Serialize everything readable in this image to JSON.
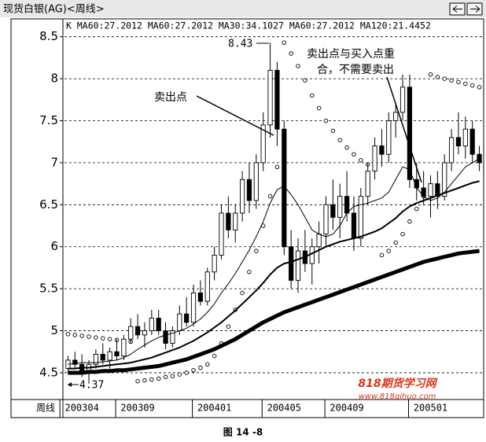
{
  "chart_data": {
    "type": "candlestick",
    "title": "现货白银(AG)<周线>",
    "legend": "K MA60:27.2012 MA60:27.2012 MA30:34.1027 MA60:27.2012 MA120:21.4452",
    "x_label": "周线",
    "caption": "图 14 -8",
    "annotations": [
      "8.43",
      "4.37",
      "卖出点",
      "卖出点与买入点重",
      "合，不需要卖出"
    ],
    "watermark": [
      "818期货学习网",
      "www.818qihuo.com"
    ],
    "categories": [
      null,
      null,
      "200304",
      null,
      null,
      null,
      null,
      null,
      null,
      null,
      "200309",
      null,
      null,
      null,
      null,
      null,
      null,
      null,
      null,
      null,
      null,
      "200401",
      null,
      null,
      null,
      null,
      null,
      null,
      null,
      null,
      null,
      "200405",
      null,
      null,
      null,
      null,
      null,
      null,
      null,
      null,
      "200409",
      null,
      null,
      null,
      null,
      null,
      null,
      null,
      null,
      null,
      null,
      null,
      "200501",
      null,
      null,
      null,
      null,
      null,
      null,
      null
    ],
    "open": [
      4.55,
      4.65,
      4.6,
      4.5,
      4.6,
      4.72,
      4.65,
      4.75,
      4.7,
      4.9,
      5.05,
      4.95,
      5.0,
      5.15,
      5.0,
      4.85,
      5.0,
      5.2,
      5.1,
      5.45,
      5.35,
      5.7,
      5.9,
      6.4,
      6.2,
      6.4,
      6.8,
      6.55,
      7.0,
      7.45,
      8.1,
      7.4,
      6.0,
      5.6,
      5.95,
      5.8,
      6.0,
      6.15,
      6.5,
      6.35,
      6.6,
      6.4,
      6.1,
      6.6,
      6.9,
      7.2,
      7.1,
      7.5,
      7.6,
      7.9,
      6.8,
      6.7,
      6.6,
      6.75,
      6.6,
      7.0,
      7.3,
      7.2,
      7.4,
      7.1
    ],
    "high": [
      4.7,
      4.75,
      4.72,
      4.65,
      4.78,
      4.85,
      4.8,
      4.9,
      4.95,
      5.15,
      5.2,
      5.1,
      5.25,
      5.25,
      5.1,
      5.05,
      5.3,
      5.4,
      5.55,
      5.6,
      5.75,
      6.0,
      6.5,
      6.6,
      6.5,
      6.9,
      7.0,
      7.1,
      7.6,
      8.43,
      8.2,
      7.5,
      6.2,
      6.1,
      6.2,
      6.1,
      6.3,
      6.6,
      6.8,
      6.75,
      6.9,
      6.6,
      6.7,
      7.0,
      7.3,
      7.4,
      7.6,
      7.7,
      8.05,
      8.05,
      7.0,
      6.9,
      6.85,
      6.9,
      7.1,
      7.4,
      7.6,
      7.55,
      7.5,
      7.2
    ],
    "low": [
      4.5,
      4.55,
      4.45,
      4.37,
      4.55,
      4.6,
      4.55,
      4.65,
      4.65,
      4.85,
      4.9,
      4.8,
      4.95,
      4.95,
      4.78,
      4.8,
      4.95,
      5.05,
      5.05,
      5.3,
      5.3,
      5.6,
      5.85,
      6.1,
      6.05,
      6.3,
      6.4,
      6.45,
      6.9,
      7.3,
      7.2,
      5.9,
      5.5,
      5.45,
      5.7,
      5.55,
      5.8,
      6.0,
      6.2,
      6.1,
      6.3,
      5.95,
      6.0,
      6.5,
      6.8,
      6.95,
      7.0,
      7.3,
      7.5,
      6.7,
      6.55,
      6.5,
      6.35,
      6.45,
      6.55,
      6.9,
      7.1,
      7.05,
      7.0,
      6.9
    ],
    "close": [
      4.65,
      4.6,
      4.5,
      4.6,
      4.72,
      4.65,
      4.75,
      4.7,
      4.9,
      5.05,
      4.95,
      5.0,
      5.15,
      5.0,
      4.85,
      5.0,
      5.2,
      5.1,
      5.45,
      5.35,
      5.7,
      5.9,
      6.4,
      6.2,
      6.4,
      6.8,
      6.55,
      7.0,
      7.45,
      8.1,
      7.4,
      6.0,
      5.6,
      5.95,
      5.8,
      6.0,
      6.15,
      6.5,
      6.35,
      6.6,
      6.4,
      6.1,
      6.6,
      6.9,
      7.2,
      7.1,
      7.5,
      7.6,
      7.9,
      6.8,
      6.7,
      6.6,
      6.75,
      6.6,
      7.0,
      7.3,
      7.2,
      7.4,
      7.1,
      7.0
    ],
    "lines": [
      {
        "color": "#000000",
        "width": 1,
        "values": [
          4.6,
          4.61,
          4.62,
          4.62,
          4.62,
          4.63,
          4.64,
          4.65,
          4.68,
          4.72,
          4.78,
          4.83,
          4.88,
          4.92,
          4.95,
          4.97,
          5.0,
          5.03,
          5.08,
          5.14,
          5.22,
          5.32,
          5.45,
          5.56,
          5.68,
          5.82,
          5.96,
          6.12,
          6.3,
          6.52,
          6.68,
          6.72,
          6.62,
          6.5,
          6.35,
          6.2,
          6.15,
          6.12,
          6.15,
          6.25,
          6.4,
          6.48,
          6.5,
          6.52,
          6.55,
          6.58,
          6.65,
          6.8,
          6.95,
          6.92,
          6.7,
          6.6,
          6.55,
          6.58,
          6.65,
          6.75,
          6.85,
          6.95,
          7.0,
          7.05
        ]
      },
      {
        "color": "#000000",
        "width": 2,
        "values": [
          4.55,
          4.55,
          4.56,
          4.56,
          4.57,
          4.58,
          4.59,
          4.6,
          4.61,
          4.62,
          4.64,
          4.66,
          4.68,
          4.71,
          4.74,
          4.77,
          4.8,
          4.84,
          4.88,
          4.93,
          4.98,
          5.04,
          5.1,
          5.17,
          5.24,
          5.32,
          5.4,
          5.48,
          5.57,
          5.67,
          5.75,
          5.8,
          5.82,
          5.85,
          5.88,
          5.92,
          5.96,
          6.0,
          6.03,
          6.06,
          6.08,
          6.1,
          6.12,
          6.15,
          6.18,
          6.22,
          6.28,
          6.34,
          6.42,
          6.48,
          6.52,
          6.55,
          6.58,
          6.61,
          6.64,
          6.67,
          6.7,
          6.73,
          6.76,
          6.78
        ]
      },
      {
        "color": "#000000",
        "width": 5,
        "values": [
          4.5,
          4.5,
          4.5,
          4.51,
          4.51,
          4.52,
          4.52,
          4.53,
          4.53,
          4.54,
          4.55,
          4.56,
          4.57,
          4.58,
          4.6,
          4.62,
          4.64,
          4.66,
          4.69,
          4.72,
          4.75,
          4.78,
          4.82,
          4.86,
          4.9,
          4.95,
          5.0,
          5.05,
          5.1,
          5.14,
          5.18,
          5.22,
          5.25,
          5.28,
          5.31,
          5.34,
          5.37,
          5.4,
          5.43,
          5.46,
          5.49,
          5.52,
          5.55,
          5.58,
          5.61,
          5.64,
          5.67,
          5.7,
          5.73,
          5.76,
          5.79,
          5.82,
          5.84,
          5.86,
          5.88,
          5.9,
          5.92,
          5.93,
          5.94,
          5.95
        ]
      }
    ],
    "sar": [
      4.96,
      4.95,
      4.94,
      4.93,
      4.92,
      4.91,
      4.9,
      4.89,
      4.88,
      4.87,
      4.4,
      4.41,
      4.42,
      4.43,
      4.45,
      4.46,
      4.48,
      4.5,
      4.53,
      4.56,
      4.6,
      4.7,
      4.85,
      5.05,
      5.25,
      5.45,
      5.7,
      5.95,
      6.25,
      6.6,
      6.95,
      8.43,
      8.3,
      8.15,
      7.98,
      7.8,
      7.65,
      7.5,
      7.38,
      7.27,
      7.18,
      7.1,
      7.03,
      6.98,
      6.95,
      5.9,
      5.95,
      6.05,
      6.15,
      6.3,
      6.45,
      6.6,
      8.05,
      8.02,
      8.0,
      7.98,
      7.96,
      7.94,
      7.92,
      7.9
    ],
    "up_color": "#ffffff",
    "down_color": "#000000",
    "ylim": [
      4.2,
      8.6
    ],
    "yticks": [
      4.5,
      5.0,
      5.5,
      6.0,
      6.5,
      7.0,
      7.5,
      8.0,
      8.5
    ],
    "grid": true
  }
}
